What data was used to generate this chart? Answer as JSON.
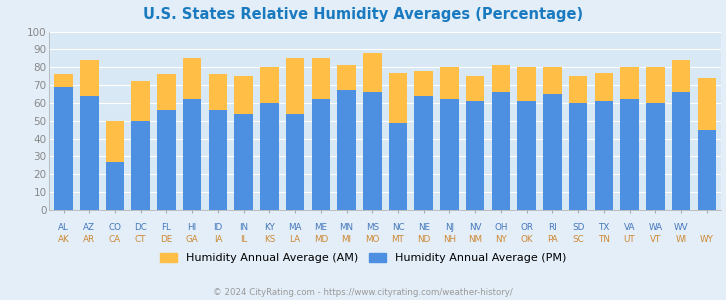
{
  "title": "U.S. States Relative Humidity Averages (Percentage)",
  "states_top": [
    "AL",
    "AZ",
    "CO",
    "DC",
    "FL",
    "HI",
    "ID",
    "IN",
    "KY",
    "MA",
    "ME",
    "MN",
    "MS",
    "NC",
    "NE",
    "NJ",
    "NV",
    "OH",
    "OR",
    "RI",
    "SD",
    "TX",
    "VA",
    "WA",
    "WV",
    ""
  ],
  "states_bot": [
    "AK",
    "AR",
    "CA",
    "CT",
    "DE",
    "GA",
    "IA",
    "IL",
    "KS",
    "LA",
    "MD",
    "MI",
    "MO",
    "MT",
    "ND",
    "NH",
    "NM",
    "NY",
    "OK",
    "PA",
    "SC",
    "TN",
    "UT",
    "VT",
    "WI",
    "WY"
  ],
  "am_values": [
    76,
    84,
    50,
    72,
    76,
    85,
    76,
    75,
    80,
    85,
    85,
    81,
    88,
    77,
    78,
    80,
    75,
    81,
    80,
    80,
    75,
    77,
    80,
    80,
    84,
    74
  ],
  "pm_values": [
    69,
    64,
    27,
    50,
    56,
    62,
    56,
    54,
    60,
    54,
    62,
    67,
    66,
    49,
    64,
    62,
    61,
    66,
    61,
    65,
    60,
    61,
    62,
    60,
    66,
    45
  ],
  "am_color": "#ffbf47",
  "pm_color": "#4d8fe0",
  "bg_color": "#e4eef8",
  "plot_area_color": "#d8e8f4",
  "title_color": "#1a7abf",
  "tick_color": "#888888",
  "grid_color": "#ffffff",
  "legend_am": "Humidity Annual Average (AM)",
  "legend_pm": "Humidity Annual Average (PM)",
  "footer": "© 2024 CityRating.com - https://www.cityrating.com/weather-history/",
  "ylim": [
    0,
    100
  ],
  "yticks": [
    0,
    10,
    20,
    30,
    40,
    50,
    60,
    70,
    80,
    90,
    100
  ],
  "top_label_color": "#4477bb",
  "bot_label_color": "#cc8833"
}
